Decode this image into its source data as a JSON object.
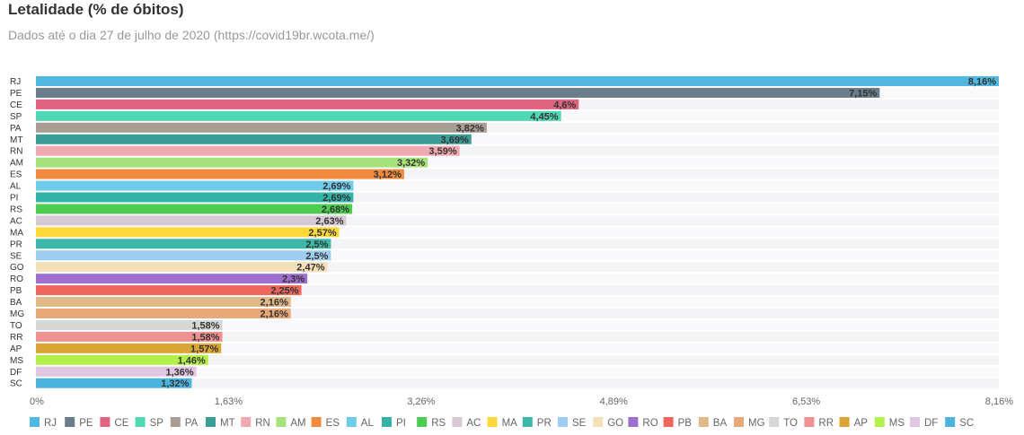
{
  "title": "Letalidade (% de óbitos)",
  "subtitle": "Dados até o dia 27 de julho de 2020 (https://covid19br.wcota.me/)",
  "chart_data": {
    "type": "bar",
    "orientation": "horizontal",
    "title": "Letalidade (% de óbitos)",
    "subtitle": "Dados até o dia 27 de julho de 2020 (https://covid19br.wcota.me/)",
    "categories": [
      "RJ",
      "PE",
      "CE",
      "SP",
      "PA",
      "MT",
      "RN",
      "AM",
      "ES",
      "AL",
      "PI",
      "RS",
      "AC",
      "MA",
      "PR",
      "SE",
      "GO",
      "RO",
      "PB",
      "BA",
      "MG",
      "TO",
      "RR",
      "AP",
      "MS",
      "DF",
      "SC"
    ],
    "values": [
      8.16,
      7.15,
      4.6,
      4.45,
      3.82,
      3.69,
      3.59,
      3.32,
      3.12,
      2.69,
      2.69,
      2.68,
      2.63,
      2.57,
      2.5,
      2.5,
      2.47,
      2.3,
      2.25,
      2.16,
      2.16,
      1.58,
      1.58,
      1.57,
      1.46,
      1.36,
      1.32
    ],
    "value_labels": [
      "8,16%",
      "7,15%",
      "4,6%",
      "4,45%",
      "3,82%",
      "3,69%",
      "3,59%",
      "3,32%",
      "3,12%",
      "2,69%",
      "2,69%",
      "2,68%",
      "2,63%",
      "2,57%",
      "2,5%",
      "2,5%",
      "2,47%",
      "2,3%",
      "2,25%",
      "2,16%",
      "2,16%",
      "1,58%",
      "1,58%",
      "1,57%",
      "1,46%",
      "1,36%",
      "1,32%"
    ],
    "colors": [
      "#4fb7e0",
      "#6b7d8a",
      "#e0647f",
      "#4fd8b4",
      "#a89d92",
      "#3a9e97",
      "#f0a9b0",
      "#a6e27a",
      "#f08a3c",
      "#6ecbe9",
      "#33b3a8",
      "#4ccc50",
      "#d6c8d4",
      "#ffd83a",
      "#3db8a6",
      "#9ecdf2",
      "#f3dfb8",
      "#9e6fd0",
      "#f0665c",
      "#e3b888",
      "#e8a878",
      "#d6d6d6",
      "#f09090",
      "#dba535",
      "#b4f04a",
      "#e0c6e0",
      "#4ab4de"
    ],
    "xlim": [
      0,
      8.16
    ],
    "ticks": [
      "0%",
      "1,63%",
      "3,26%",
      "4,89%",
      "6,53%",
      "8,16%"
    ],
    "legend_position": "bottom"
  }
}
